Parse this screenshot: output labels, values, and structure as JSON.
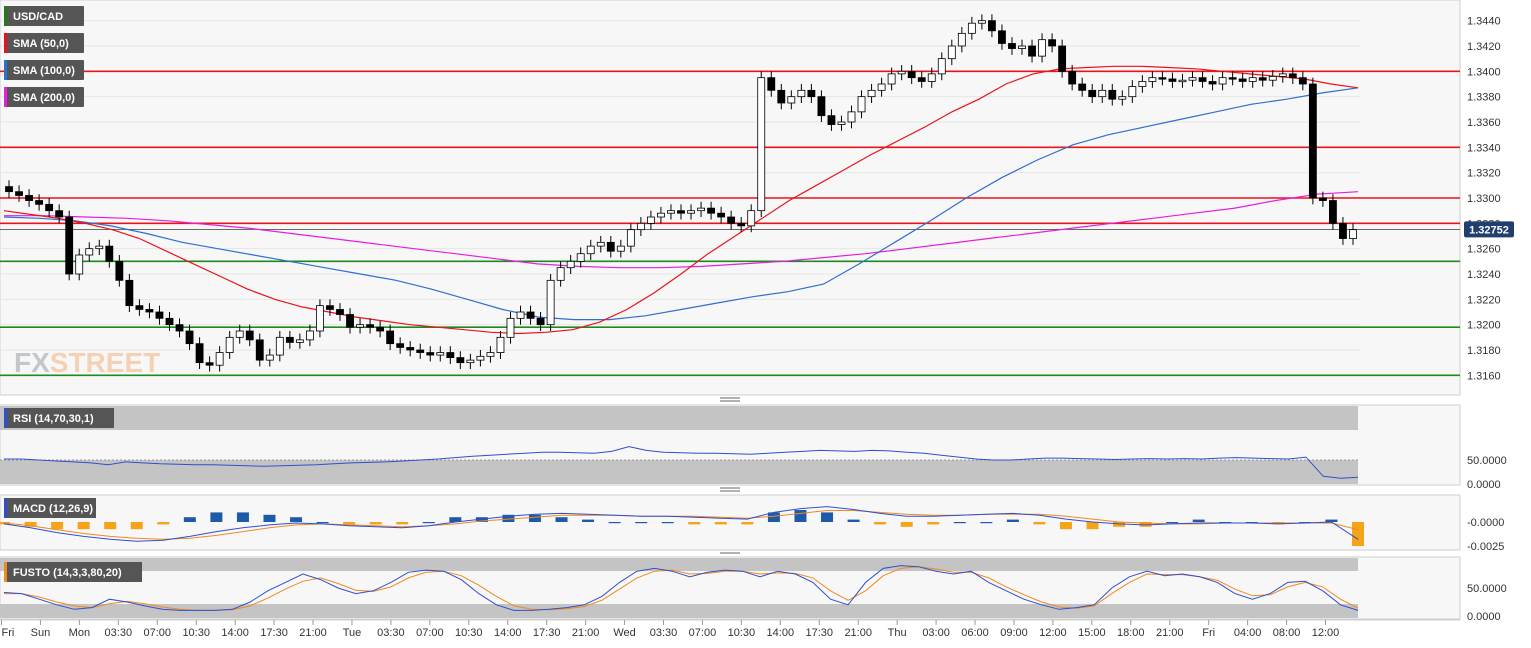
{
  "main_panel": {
    "symbol": "USD/CAD",
    "last_price_label": "1.32752",
    "watermark": "FXSTREET",
    "legend": [
      {
        "label": "USD/CAD",
        "color": "#1e7b1e"
      },
      {
        "label": "SMA (50,0)",
        "color": "#e8141a"
      },
      {
        "label": "SMA (100,0)",
        "color": "#2f6fd0"
      },
      {
        "label": "SMA (200,0)",
        "color": "#e51ee0"
      }
    ]
  },
  "rsi_panel": {
    "label": "RSI (14,70,30,1)",
    "ticks": [
      "50.0000",
      "0.0000"
    ]
  },
  "macd_panel": {
    "label": "MACD (12,26,9)",
    "ticks": [
      "-0.0000",
      "-0.0025"
    ]
  },
  "fusto_panel": {
    "label": "FUSTO (14,3,3,80,20)",
    "ticks": [
      "50.0000",
      "0.0000"
    ]
  },
  "colors": {
    "resistance_line": "#e8141a",
    "support_line": "#1e8a1e",
    "rsi_line": "#2f4fd0",
    "macd_signal": "#f08a1e",
    "macd_hist_positive": "#1f5aa8",
    "macd_hist_negative": "#f5a318",
    "watermark_fx": "#9aa0a8",
    "watermark_street": "#f5b27a"
  },
  "chart_data": {
    "type": "line",
    "series_type": "candlestick",
    "y_axis": {
      "range": [
        1.315,
        1.345
      ],
      "ticks": [
        "1.3160",
        "1.3180",
        "1.3200",
        "1.3220",
        "1.3240",
        "1.3260",
        "1.3280",
        "1.3300",
        "1.3320",
        "1.3340",
        "1.3360",
        "1.3380",
        "1.3400",
        "1.3420",
        "1.3440"
      ]
    },
    "x_axis_ticks": [
      "Fri",
      "Sun",
      "Mon",
      "03:30",
      "07:00",
      "10:30",
      "14:00",
      "17:30",
      "21:00",
      "Tue",
      "03:30",
      "07:00",
      "10:30",
      "14:00",
      "17:30",
      "21:00",
      "Wed",
      "03:30",
      "07:00",
      "10:30",
      "14:00",
      "17:30",
      "21:00",
      "Thu",
      "03:00",
      "06:00",
      "09:00",
      "12:00",
      "15:00",
      "18:00",
      "21:00",
      "Fri",
      "04:00",
      "08:00",
      "12:00"
    ],
    "horizontal_levels": {
      "resistance": [
        1.34,
        1.334,
        1.33,
        1.328
      ],
      "support": [
        1.325,
        1.3198,
        1.316
      ]
    },
    "last_price": 1.32752,
    "close_series": [
      1.3305,
      1.3302,
      1.3298,
      1.3295,
      1.329,
      1.3285,
      1.324,
      1.3255,
      1.326,
      1.3262,
      1.325,
      1.3235,
      1.3215,
      1.3212,
      1.321,
      1.3205,
      1.32,
      1.3195,
      1.3185,
      1.317,
      1.3168,
      1.3178,
      1.319,
      1.3195,
      1.3188,
      1.3172,
      1.3176,
      1.319,
      1.3186,
      1.3188,
      1.3195,
      1.3215,
      1.3212,
      1.3208,
      1.3198,
      1.32,
      1.3198,
      1.3195,
      1.3185,
      1.3182,
      1.318,
      1.3178,
      1.3176,
      1.3178,
      1.3174,
      1.317,
      1.3172,
      1.3175,
      1.3178,
      1.319,
      1.3205,
      1.321,
      1.3205,
      1.32,
      1.3235,
      1.3245,
      1.325,
      1.3256,
      1.3262,
      1.3265,
      1.3258,
      1.3262,
      1.3275,
      1.328,
      1.3285,
      1.3288,
      1.329,
      1.3288,
      1.329,
      1.3292,
      1.3288,
      1.3285,
      1.328,
      1.3278,
      1.329,
      1.3395,
      1.3385,
      1.3375,
      1.338,
      1.3385,
      1.338,
      1.3365,
      1.3358,
      1.336,
      1.3368,
      1.338,
      1.3385,
      1.339,
      1.3398,
      1.34,
      1.3395,
      1.3392,
      1.3398,
      1.341,
      1.342,
      1.343,
      1.3438,
      1.344,
      1.3432,
      1.3422,
      1.3418,
      1.342,
      1.3412,
      1.3425,
      1.342,
      1.34,
      1.339,
      1.3385,
      1.338,
      1.3385,
      1.3378,
      1.338,
      1.3388,
      1.3392,
      1.3395,
      1.3394,
      1.3392,
      1.3393,
      1.3395,
      1.3392,
      1.339,
      1.3395,
      1.3394,
      1.3392,
      1.3395,
      1.3393,
      1.3396,
      1.3398,
      1.3395,
      1.339,
      1.33,
      1.3298,
      1.328,
      1.3268,
      1.3275
    ],
    "sma_50": [
      1.329,
      1.3287,
      1.3284,
      1.328,
      1.3275,
      1.3268,
      1.3258,
      1.3248,
      1.3238,
      1.3228,
      1.322,
      1.3214,
      1.321,
      1.3206,
      1.3203,
      1.32,
      1.3198,
      1.3196,
      1.3194,
      1.3193,
      1.3194,
      1.3196,
      1.3202,
      1.3212,
      1.3225,
      1.324,
      1.3256,
      1.327,
      1.3284,
      1.3298,
      1.331,
      1.3322,
      1.3334,
      1.3345,
      1.3356,
      1.3368,
      1.3378,
      1.339,
      1.3398,
      1.3402,
      1.3403,
      1.3404,
      1.3404,
      1.3403,
      1.3402,
      1.34,
      1.3398,
      1.3396,
      1.3394,
      1.339,
      1.3387
    ],
    "sma_100": [
      1.3285,
      1.3284,
      1.3282,
      1.3278,
      1.3272,
      1.3265,
      1.326,
      1.3255,
      1.325,
      1.3245,
      1.324,
      1.3235,
      1.3228,
      1.322,
      1.3212,
      1.3206,
      1.3204,
      1.3204,
      1.3207,
      1.3212,
      1.3217,
      1.3222,
      1.3226,
      1.3232,
      1.3248,
      1.3265,
      1.3282,
      1.33,
      1.3316,
      1.333,
      1.3342,
      1.335,
      1.3356,
      1.3362,
      1.3368,
      1.3374,
      1.3378,
      1.3383,
      1.3387
    ],
    "sma_200": [
      1.3286,
      1.3286,
      1.3285,
      1.3284,
      1.3282,
      1.3279,
      1.3276,
      1.3272,
      1.3268,
      1.3264,
      1.326,
      1.3256,
      1.3252,
      1.3248,
      1.3246,
      1.3245,
      1.3245,
      1.3246,
      1.3248,
      1.325,
      1.3253,
      1.3256,
      1.326,
      1.3264,
      1.3268,
      1.3272,
      1.3276,
      1.328,
      1.3284,
      1.3288,
      1.3292,
      1.3298,
      1.3303,
      1.3305
    ],
    "rsi": [
      52,
      52,
      50,
      48,
      46,
      44,
      40,
      46,
      44,
      42,
      41,
      40,
      40,
      39,
      38,
      37,
      38,
      39,
      40,
      42,
      44,
      45,
      46,
      48,
      50,
      52,
      55,
      58,
      60,
      62,
      64,
      66,
      66,
      65,
      64,
      68,
      78,
      70,
      66,
      65,
      64,
      64,
      63,
      62,
      64,
      66,
      68,
      70,
      69,
      68,
      70,
      69,
      66,
      64,
      60,
      56,
      52,
      50,
      50,
      52,
      54,
      54,
      53,
      52,
      51,
      52,
      53,
      52,
      53,
      52,
      54,
      55,
      54,
      53,
      52,
      56,
      16,
      12,
      14
    ],
    "macd": [
      -0.0002,
      -0.0006,
      -0.0011,
      -0.0015,
      -0.0018,
      -0.002,
      -0.0019,
      -0.0015,
      -0.001,
      -0.0006,
      -0.0003,
      -0.0001,
      -0.0002,
      -0.0004,
      -0.0005,
      -0.0006,
      -0.0004,
      0.0,
      0.0003,
      0.0006,
      0.0008,
      0.0009,
      0.0008,
      0.0007,
      0.0006,
      0.0006,
      0.0005,
      0.0004,
      0.0003,
      0.001,
      0.0014,
      0.0016,
      0.0013,
      0.0009,
      0.0006,
      0.0006,
      0.0007,
      0.0008,
      0.0009,
      0.0007,
      0.0003,
      0.0,
      -0.0002,
      -0.0003,
      -0.0002,
      -0.0001,
      -0.0001,
      -0.0001,
      -0.0002,
      -0.0001,
      0.0,
      -0.0018
    ],
    "macd_signal": [
      -0.0001,
      -0.0004,
      -0.0008,
      -0.0012,
      -0.0015,
      -0.0017,
      -0.0018,
      -0.0017,
      -0.0014,
      -0.001,
      -0.0006,
      -0.0003,
      -0.0002,
      -0.0003,
      -0.0004,
      -0.0005,
      -0.0004,
      -0.0002,
      0.0001,
      0.0003,
      0.0005,
      0.0007,
      0.0007,
      0.0007,
      0.0006,
      0.0006,
      0.0006,
      0.0005,
      0.0004,
      0.0006,
      0.0009,
      0.0012,
      0.0012,
      0.001,
      0.0008,
      0.0007,
      0.0007,
      0.0008,
      0.0008,
      0.0008,
      0.0006,
      0.0003,
      0.0,
      -0.0001,
      -0.0002,
      -0.0002,
      -0.0001,
      -0.0001,
      -0.0001,
      -0.0001,
      -0.0001,
      -0.0008
    ],
    "fusto_k": [
      42,
      40,
      30,
      20,
      12,
      15,
      30,
      25,
      18,
      12,
      10,
      10,
      10,
      12,
      25,
      45,
      60,
      75,
      65,
      50,
      40,
      45,
      60,
      78,
      82,
      80,
      65,
      40,
      20,
      10,
      10,
      12,
      15,
      20,
      35,
      60,
      80,
      85,
      80,
      70,
      78,
      82,
      80,
      70,
      80,
      75,
      60,
      30,
      20,
      60,
      85,
      90,
      88,
      80,
      75,
      80,
      60,
      45,
      30,
      20,
      12,
      15,
      20,
      50,
      70,
      80,
      72,
      75,
      70,
      60,
      40,
      30,
      40,
      60,
      62,
      45,
      20,
      10
    ],
    "fusto_d": [
      40,
      40,
      34,
      25,
      18,
      15,
      22,
      26,
      22,
      16,
      12,
      10,
      10,
      11,
      18,
      32,
      48,
      62,
      68,
      58,
      46,
      44,
      52,
      68,
      78,
      80,
      72,
      55,
      35,
      18,
      12,
      11,
      13,
      17,
      28,
      48,
      68,
      80,
      82,
      75,
      76,
      80,
      80,
      75,
      77,
      76,
      68,
      45,
      28,
      45,
      72,
      85,
      88,
      84,
      78,
      78,
      68,
      52,
      38,
      25,
      16,
      14,
      18,
      40,
      60,
      75,
      74,
      74,
      70,
      64,
      48,
      36,
      38,
      52,
      60,
      52,
      30,
      14
    ]
  }
}
